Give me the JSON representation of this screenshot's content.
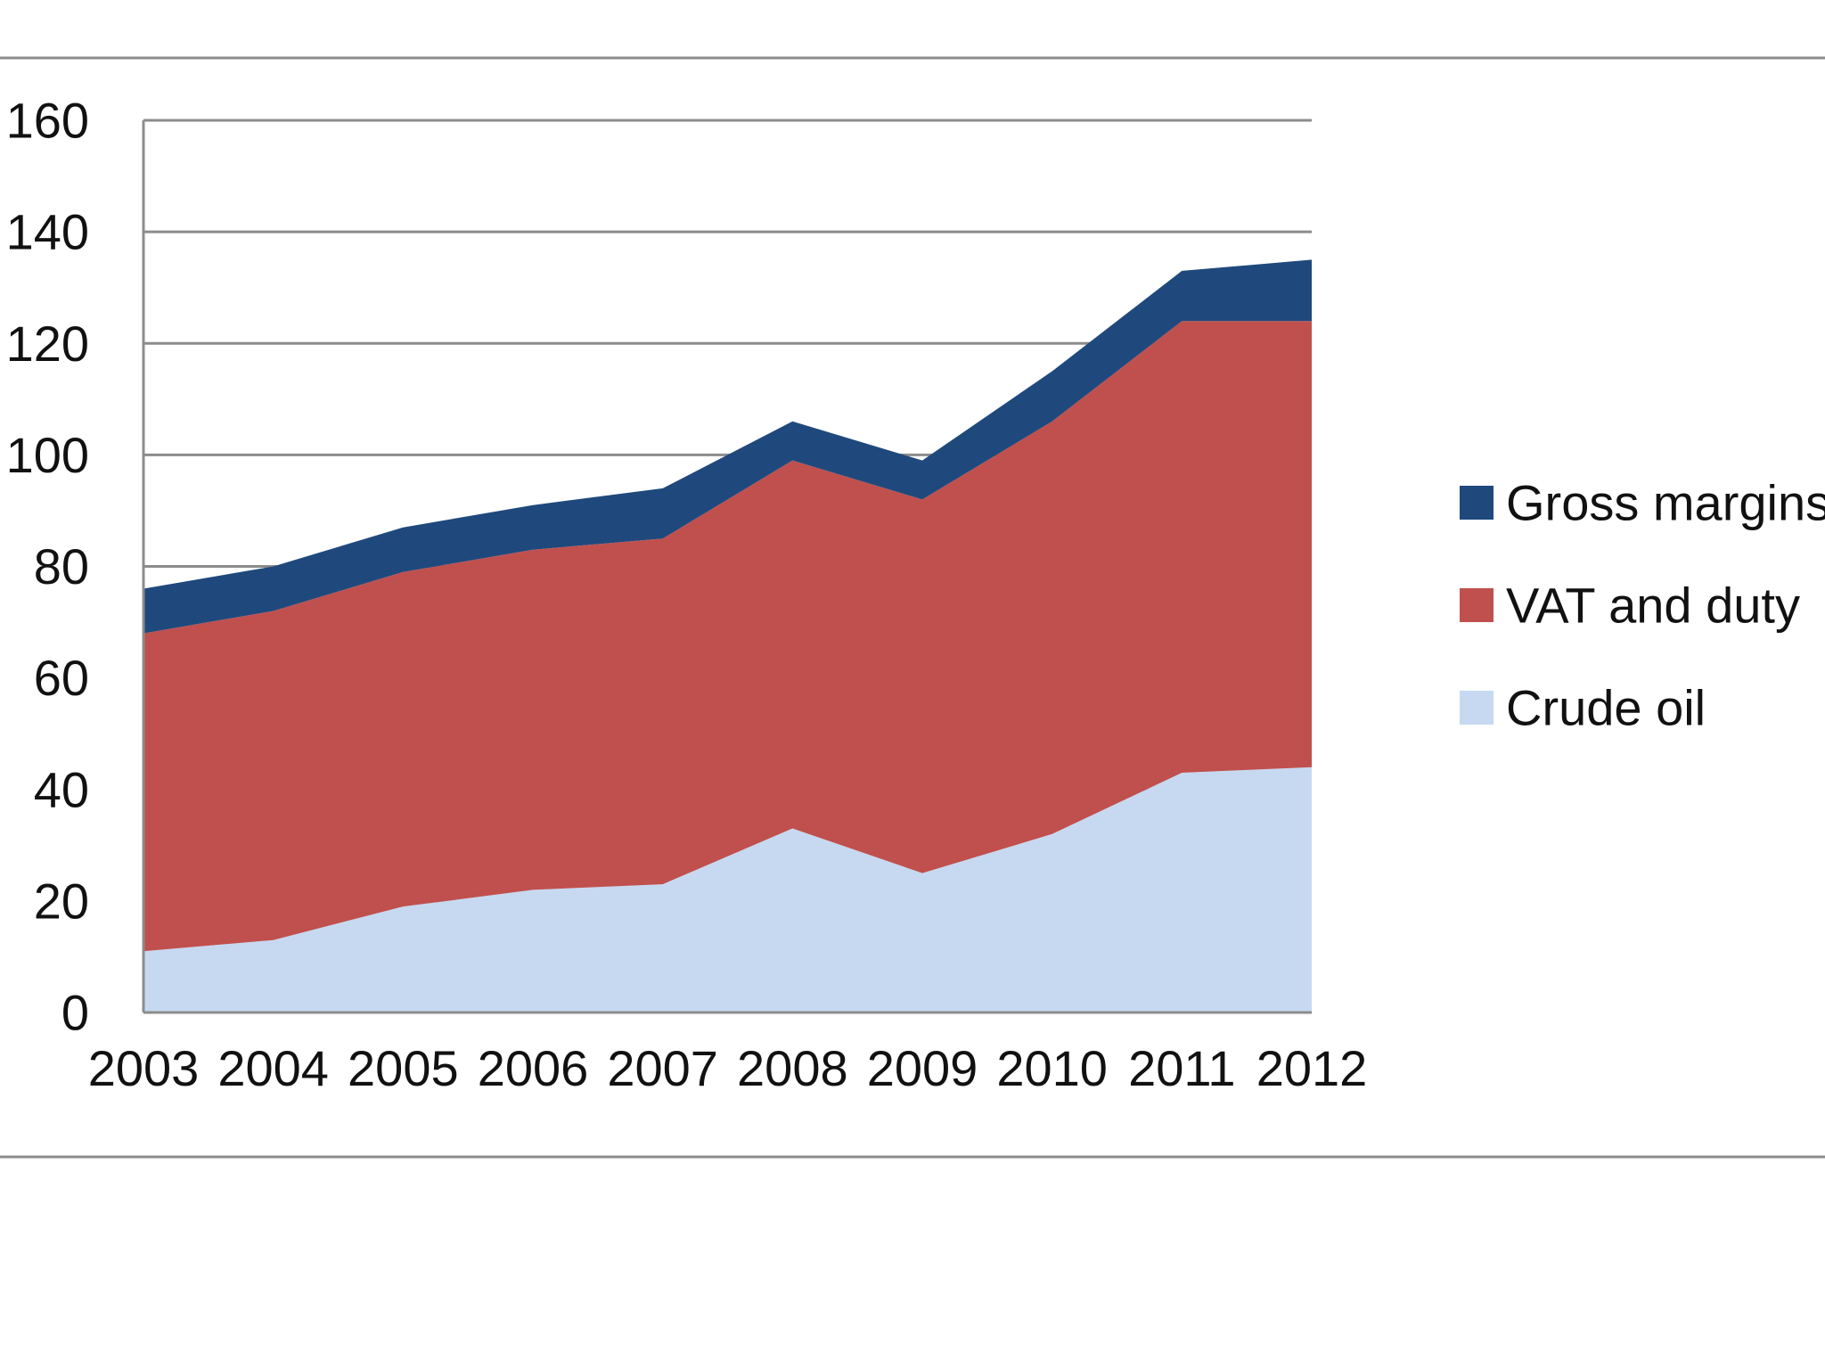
{
  "chart_data": {
    "type": "area",
    "stacked": true,
    "title": "",
    "xlabel": "",
    "ylabel": "",
    "ylim": [
      0,
      160
    ],
    "yticks": [
      0,
      20,
      40,
      60,
      80,
      100,
      120,
      140,
      160
    ],
    "categories": [
      "2003",
      "2004",
      "2005",
      "2006",
      "2007",
      "2008",
      "2009",
      "2010",
      "2011",
      "2012"
    ],
    "grid": true,
    "legend_position": "right",
    "series": [
      {
        "name": "Crude oil",
        "color": "#C6D9F1",
        "values": [
          11,
          13,
          19,
          22,
          23,
          33,
          25,
          32,
          43,
          44
        ]
      },
      {
        "name": "VAT and duty",
        "color": "#C0504D",
        "values": [
          57,
          59,
          60,
          61,
          62,
          66,
          67,
          74,
          81,
          80
        ]
      },
      {
        "name": "Gross margins",
        "color": "#1F497D",
        "values": [
          8,
          8,
          8,
          8,
          9,
          7,
          7,
          9,
          9,
          11
        ]
      }
    ],
    "legend_order": [
      "Gross margins",
      "VAT and duty",
      "Crude oil"
    ]
  }
}
